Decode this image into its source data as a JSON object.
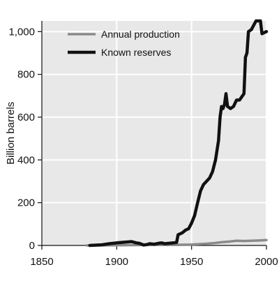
{
  "chart_data": {
    "type": "line",
    "title": "",
    "xlabel": "",
    "ylabel": "Billion barrels",
    "xlim": [
      1850,
      2000
    ],
    "ylim": [
      0,
      1050
    ],
    "x_ticks": [
      1850,
      1900,
      1950,
      2000
    ],
    "x_tick_labels": [
      "1850",
      "1900",
      "1950",
      "2000"
    ],
    "y_ticks": [
      0,
      200,
      400,
      600,
      800,
      1000
    ],
    "y_tick_labels": [
      "0",
      "200",
      "400",
      "600",
      "800",
      "1,000"
    ],
    "grid": true,
    "legend_position": "top-left",
    "series": [
      {
        "name": "Annual production",
        "color": "#8a8a8a",
        "points": [
          [
            1880,
            0
          ],
          [
            1900,
            1
          ],
          [
            1920,
            2
          ],
          [
            1940,
            3
          ],
          [
            1950,
            4
          ],
          [
            1960,
            8
          ],
          [
            1965,
            11
          ],
          [
            1970,
            15
          ],
          [
            1975,
            18
          ],
          [
            1980,
            22
          ],
          [
            1985,
            21
          ],
          [
            1990,
            22
          ],
          [
            1995,
            23
          ],
          [
            2000,
            25
          ]
        ]
      },
      {
        "name": "Known reserves",
        "color": "#111111",
        "points": [
          [
            1882,
            0
          ],
          [
            1890,
            3
          ],
          [
            1895,
            8
          ],
          [
            1900,
            12
          ],
          [
            1905,
            15
          ],
          [
            1910,
            18
          ],
          [
            1913,
            12
          ],
          [
            1915,
            10
          ],
          [
            1918,
            2
          ],
          [
            1920,
            4
          ],
          [
            1922,
            8
          ],
          [
            1925,
            6
          ],
          [
            1928,
            10
          ],
          [
            1930,
            12
          ],
          [
            1932,
            8
          ],
          [
            1935,
            10
          ],
          [
            1938,
            12
          ],
          [
            1940,
            14
          ],
          [
            1941,
            50
          ],
          [
            1944,
            60
          ],
          [
            1946,
            72
          ],
          [
            1948,
            78
          ],
          [
            1950,
            105
          ],
          [
            1952,
            140
          ],
          [
            1954,
            200
          ],
          [
            1956,
            255
          ],
          [
            1958,
            285
          ],
          [
            1960,
            300
          ],
          [
            1962,
            315
          ],
          [
            1964,
            345
          ],
          [
            1966,
            400
          ],
          [
            1968,
            490
          ],
          [
            1969,
            600
          ],
          [
            1970,
            650
          ],
          [
            1971,
            640
          ],
          [
            1972,
            660
          ],
          [
            1973,
            710
          ],
          [
            1974,
            650
          ],
          [
            1976,
            640
          ],
          [
            1978,
            650
          ],
          [
            1980,
            680
          ],
          [
            1982,
            680
          ],
          [
            1984,
            700
          ],
          [
            1985,
            710
          ],
          [
            1986,
            880
          ],
          [
            1987,
            900
          ],
          [
            1988,
            1000
          ],
          [
            1990,
            1010
          ],
          [
            1993,
            1050
          ],
          [
            1996,
            1050
          ],
          [
            1997,
            990
          ],
          [
            2000,
            1000
          ]
        ]
      }
    ]
  }
}
